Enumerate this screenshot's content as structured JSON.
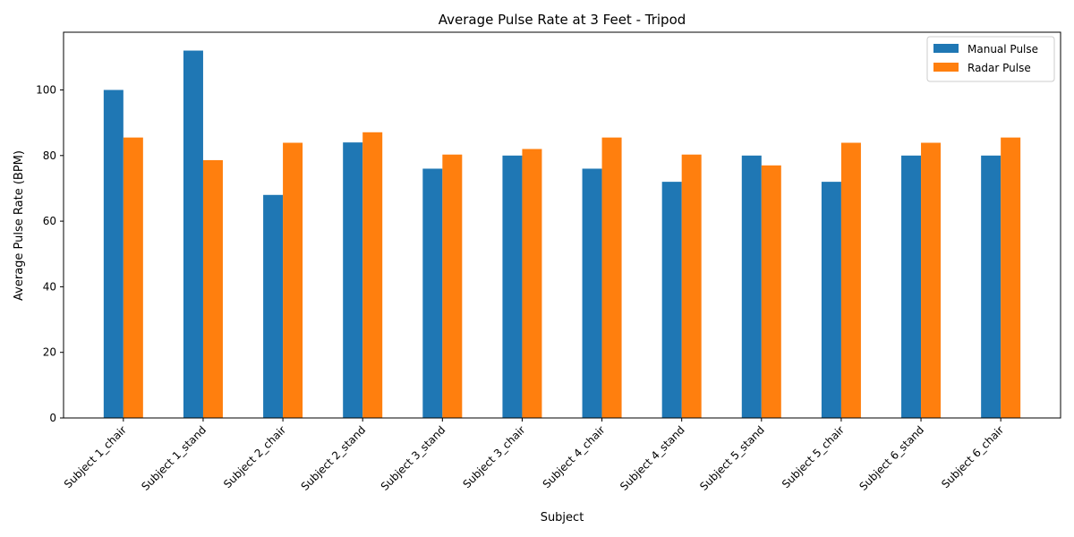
{
  "chart_data": {
    "type": "bar",
    "title": "Average Pulse Rate at 3 Feet - Tripod",
    "xlabel": "Subject",
    "ylabel": "Average Pulse Rate (BPM)",
    "categories": [
      "Subject 1_chair",
      "Subject 1_stand",
      "Subject 2_chair",
      "Subject 2_stand",
      "Subject 3_stand",
      "Subject 3_chair",
      "Subject 4_chair",
      "Subject 4_stand",
      "Subject 5_stand",
      "Subject 5_chair",
      "Subject 6_stand",
      "Subject 6_chair"
    ],
    "series": [
      {
        "name": "Manual Pulse",
        "color": "#1f77b4",
        "values": [
          100,
          112,
          68,
          84,
          76,
          80,
          76,
          72,
          80,
          72,
          80,
          80
        ]
      },
      {
        "name": "Radar Pulse",
        "color": "#ff7f0e",
        "values": [
          85.5,
          78.6,
          83.9,
          87.1,
          80.3,
          82.0,
          85.5,
          80.3,
          77.0,
          83.9,
          83.9,
          85.5
        ]
      }
    ],
    "ylim": [
      0,
      117.6
    ],
    "yticks": [
      0,
      20,
      40,
      60,
      80,
      100
    ],
    "legend_position": "top-right",
    "grid": false
  }
}
